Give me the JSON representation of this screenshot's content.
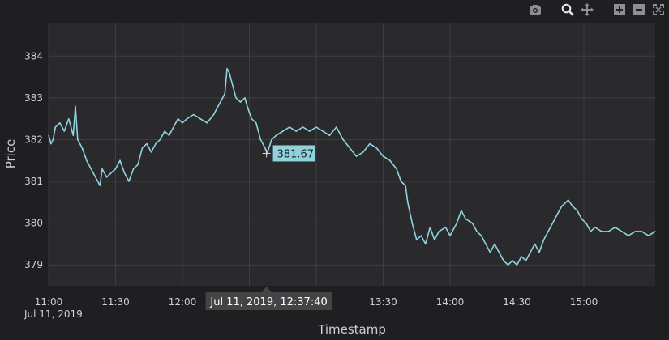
{
  "modebar": {
    "buttons": [
      {
        "name": "camera-icon"
      },
      {
        "name": "zoom-icon"
      },
      {
        "name": "pan-icon"
      },
      {
        "name": "zoom-in-icon"
      },
      {
        "name": "zoom-out-icon"
      },
      {
        "name": "autoscale-icon"
      }
    ]
  },
  "hover": {
    "y_label": "381.67",
    "x_label": "Jul 11, 2019, 12:37:40",
    "x_time": "12:37:40",
    "y_value": 381.67
  },
  "colors": {
    "line": "#8fd3df",
    "background": "#1f1f22",
    "plot": "#2a2a2d",
    "grid": "#3e3e42"
  },
  "chart_data": {
    "type": "line",
    "xlabel": "Timestamp",
    "ylabel": "Price",
    "xlim": [
      "11:00",
      "15:32"
    ],
    "ylim": [
      378.5,
      384.8
    ],
    "grid": true,
    "x_ticks": [
      "11:00",
      "11:30",
      "12:00",
      "12:30",
      "13:00",
      "13:30",
      "14:00",
      "14:30",
      "15:00"
    ],
    "x_date_label": "Jul 11, 2019",
    "y_ticks": [
      379,
      380,
      381,
      382,
      383,
      384
    ],
    "series": [
      {
        "points": [
          [
            "11:00",
            382.1
          ],
          [
            "11:01",
            381.9
          ],
          [
            "11:02",
            382.0
          ],
          [
            "11:03",
            382.3
          ],
          [
            "11:05",
            382.4
          ],
          [
            "11:07",
            382.2
          ],
          [
            "11:09",
            382.5
          ],
          [
            "11:11",
            382.1
          ],
          [
            "11:12",
            382.8
          ],
          [
            "11:13",
            382.0
          ],
          [
            "11:15",
            381.8
          ],
          [
            "11:17",
            381.5
          ],
          [
            "11:19",
            381.3
          ],
          [
            "11:21",
            381.1
          ],
          [
            "11:23",
            380.9
          ],
          [
            "11:24",
            381.3
          ],
          [
            "11:26",
            381.1
          ],
          [
            "11:28",
            381.2
          ],
          [
            "11:30",
            381.3
          ],
          [
            "11:32",
            381.5
          ],
          [
            "11:34",
            381.2
          ],
          [
            "11:36",
            381.0
          ],
          [
            "11:38",
            381.3
          ],
          [
            "11:40",
            381.4
          ],
          [
            "11:42",
            381.8
          ],
          [
            "11:44",
            381.9
          ],
          [
            "11:46",
            381.7
          ],
          [
            "11:48",
            381.9
          ],
          [
            "11:50",
            382.0
          ],
          [
            "11:52",
            382.2
          ],
          [
            "11:54",
            382.1
          ],
          [
            "11:56",
            382.3
          ],
          [
            "11:58",
            382.5
          ],
          [
            "12:00",
            382.4
          ],
          [
            "12:02",
            382.5
          ],
          [
            "12:05",
            382.6
          ],
          [
            "12:08",
            382.5
          ],
          [
            "12:11",
            382.4
          ],
          [
            "12:14",
            382.6
          ],
          [
            "12:17",
            382.9
          ],
          [
            "12:19",
            383.1
          ],
          [
            "12:20",
            383.7
          ],
          [
            "12:21",
            383.6
          ],
          [
            "12:22",
            383.4
          ],
          [
            "12:24",
            383.0
          ],
          [
            "12:26",
            382.9
          ],
          [
            "12:28",
            383.0
          ],
          [
            "12:29",
            382.8
          ],
          [
            "12:31",
            382.5
          ],
          [
            "12:33",
            382.4
          ],
          [
            "12:35",
            382.0
          ],
          [
            "12:37",
            381.8
          ],
          [
            "12:38",
            381.67
          ],
          [
            "12:40",
            382.0
          ],
          [
            "12:42",
            382.1
          ],
          [
            "12:45",
            382.2
          ],
          [
            "12:48",
            382.3
          ],
          [
            "12:51",
            382.2
          ],
          [
            "12:54",
            382.3
          ],
          [
            "12:57",
            382.2
          ],
          [
            "13:00",
            382.3
          ],
          [
            "13:03",
            382.2
          ],
          [
            "13:06",
            382.1
          ],
          [
            "13:09",
            382.3
          ],
          [
            "13:12",
            382.0
          ],
          [
            "13:15",
            381.8
          ],
          [
            "13:18",
            381.6
          ],
          [
            "13:21",
            381.7
          ],
          [
            "13:24",
            381.9
          ],
          [
            "13:27",
            381.8
          ],
          [
            "13:30",
            381.6
          ],
          [
            "13:33",
            381.5
          ],
          [
            "13:36",
            381.3
          ],
          [
            "13:38",
            381.0
          ],
          [
            "13:40",
            380.9
          ],
          [
            "13:41",
            380.5
          ],
          [
            "13:43",
            380.0
          ],
          [
            "13:45",
            379.6
          ],
          [
            "13:47",
            379.7
          ],
          [
            "13:49",
            379.5
          ],
          [
            "13:51",
            379.9
          ],
          [
            "13:53",
            379.6
          ],
          [
            "13:55",
            379.8
          ],
          [
            "13:58",
            379.9
          ],
          [
            "14:00",
            379.7
          ],
          [
            "14:03",
            380.0
          ],
          [
            "14:05",
            380.3
          ],
          [
            "14:07",
            380.1
          ],
          [
            "14:10",
            380.0
          ],
          [
            "14:12",
            379.8
          ],
          [
            "14:14",
            379.7
          ],
          [
            "14:16",
            379.5
          ],
          [
            "14:18",
            379.3
          ],
          [
            "14:20",
            379.5
          ],
          [
            "14:22",
            379.3
          ],
          [
            "14:24",
            379.1
          ],
          [
            "14:26",
            379.0
          ],
          [
            "14:28",
            379.1
          ],
          [
            "14:30",
            379.0
          ],
          [
            "14:32",
            379.2
          ],
          [
            "14:34",
            379.1
          ],
          [
            "14:36",
            379.3
          ],
          [
            "14:38",
            379.5
          ],
          [
            "14:40",
            379.3
          ],
          [
            "14:42",
            379.6
          ],
          [
            "14:44",
            379.8
          ],
          [
            "14:46",
            380.0
          ],
          [
            "14:48",
            380.2
          ],
          [
            "14:50",
            380.4
          ],
          [
            "14:53",
            380.55
          ],
          [
            "14:55",
            380.4
          ],
          [
            "14:57",
            380.3
          ],
          [
            "14:59",
            380.1
          ],
          [
            "15:01",
            380.0
          ],
          [
            "15:03",
            379.8
          ],
          [
            "15:05",
            379.9
          ],
          [
            "15:08",
            379.8
          ],
          [
            "15:11",
            379.8
          ],
          [
            "15:14",
            379.9
          ],
          [
            "15:17",
            379.8
          ],
          [
            "15:20",
            379.7
          ],
          [
            "15:23",
            379.8
          ],
          [
            "15:26",
            379.8
          ],
          [
            "15:29",
            379.7
          ],
          [
            "15:32",
            379.8
          ]
        ]
      }
    ]
  }
}
